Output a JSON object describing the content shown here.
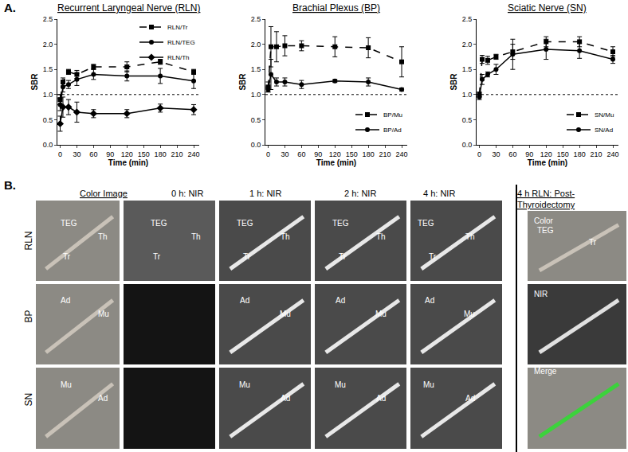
{
  "chart_data": [
    {
      "type": "line",
      "title": "Recurrent Laryngeal Nerve (RLN)",
      "x_label": "Time (min)",
      "y_label": "SBR",
      "x": [
        0,
        5,
        15,
        30,
        60,
        120,
        180,
        240
      ],
      "xlim": [
        -5,
        250
      ],
      "xticks": [
        0,
        30,
        60,
        90,
        120,
        150,
        180,
        210,
        240
      ],
      "ylim": [
        0,
        2.5
      ],
      "yticks": [
        {
          "value": 0,
          "label": "0.0"
        },
        0.5,
        {
          "value": 1,
          "label": "1.0"
        },
        1.5,
        {
          "value": 2,
          "label": "2.0"
        },
        2.5
      ],
      "reference_y": 1,
      "grid": false,
      "legend": "upper right",
      "series": [
        {
          "name": "RLN/Tr",
          "color": "#000000",
          "marker": "square",
          "line_style": "dashed",
          "values": [
            0.9,
            1.25,
            1.45,
            1.4,
            1.55,
            1.55,
            1.65,
            1.45
          ],
          "errors": [
            0.1,
            0.08,
            0.05,
            0.08,
            0.05,
            0.1,
            0.05,
            0.05
          ]
        },
        {
          "name": "RLN/TEG",
          "color": "#000000",
          "marker": "circle",
          "line_style": "solid",
          "values": [
            0.8,
            1.15,
            1.2,
            1.3,
            1.4,
            1.37,
            1.37,
            1.27
          ],
          "errors": [
            0.12,
            0.1,
            0.08,
            0.12,
            0.1,
            0.1,
            0.15,
            0.15
          ]
        },
        {
          "name": "RLN/Th",
          "color": "#000000",
          "marker": "diamond",
          "line_style": "solid",
          "values": [
            0.42,
            0.75,
            0.75,
            0.65,
            0.62,
            0.62,
            0.73,
            0.7
          ],
          "errors": [
            0.15,
            0.2,
            0.15,
            0.2,
            0.08,
            0.08,
            0.08,
            0.1
          ]
        }
      ]
    },
    {
      "type": "line",
      "title": "Brachial Plexus (BP)",
      "x_label": "Time (min)",
      "y_label": "SBR",
      "x": [
        0,
        5,
        15,
        30,
        60,
        120,
        180,
        240
      ],
      "xlim": [
        -5,
        250
      ],
      "xticks": [
        0,
        30,
        60,
        90,
        120,
        150,
        180,
        210,
        240
      ],
      "ylim": [
        0,
        2.5
      ],
      "yticks": [
        {
          "value": 0,
          "label": "0.0"
        },
        0.5,
        {
          "value": 1,
          "label": "1.0"
        },
        1.5,
        {
          "value": 2,
          "label": "2.0"
        },
        2.5
      ],
      "reference_y": 1,
      "grid": false,
      "legend": "lower right",
      "series": [
        {
          "name": "BP/Mu",
          "color": "#000000",
          "marker": "square",
          "line_style": "dashed",
          "values": [
            1.15,
            1.95,
            1.95,
            1.97,
            1.97,
            1.95,
            1.93,
            1.65
          ],
          "errors": [
            0.1,
            0.4,
            0.3,
            0.2,
            0.1,
            0.2,
            0.2,
            0.3
          ]
        },
        {
          "name": "BP/Ad",
          "color": "#000000",
          "marker": "circle",
          "line_style": "solid",
          "values": [
            1.1,
            1.4,
            1.25,
            1.25,
            1.2,
            1.27,
            1.25,
            1.1
          ],
          "errors": [
            0.05,
            0.3,
            0.08,
            0.08,
            0.08,
            0.03,
            0.08,
            0.03
          ]
        }
      ]
    },
    {
      "type": "line",
      "title": "Sciatic Nerve (SN)",
      "x_label": "Time (min)",
      "y_label": "SBR",
      "x": [
        0,
        5,
        15,
        30,
        60,
        120,
        180,
        240
      ],
      "xlim": [
        -5,
        250
      ],
      "xticks": [
        0,
        30,
        60,
        90,
        120,
        150,
        180,
        210,
        240
      ],
      "ylim": [
        0,
        2.5
      ],
      "yticks": [
        {
          "value": 0,
          "label": "0.0"
        },
        0.5,
        {
          "value": 1,
          "label": "1.0"
        },
        1.5,
        {
          "value": 2,
          "label": "2.0"
        },
        2.5
      ],
      "reference_y": 1,
      "grid": false,
      "legend": "lower right",
      "series": [
        {
          "name": "SN/Mu",
          "color": "#000000",
          "marker": "square",
          "line_style": "dashed",
          "values": [
            1.0,
            1.7,
            1.68,
            1.75,
            1.85,
            2.05,
            2.05,
            1.85
          ],
          "errors": [
            0.05,
            0.08,
            0.08,
            0.05,
            0.15,
            0.1,
            0.1,
            0.1
          ]
        },
        {
          "name": "SN/Ad",
          "color": "#000000",
          "marker": "circle",
          "line_style": "solid",
          "values": [
            0.95,
            1.3,
            1.4,
            1.5,
            1.8,
            1.9,
            1.87,
            1.7
          ],
          "errors": [
            0.05,
            0.1,
            0.05,
            0.1,
            0.3,
            0.2,
            0.15,
            0.08
          ]
        }
      ]
    }
  ],
  "panel_a_label": "A.",
  "panel_b": {
    "label": "B.",
    "columns": [
      "Color Image",
      "0 h: NIR",
      "1 h: NIR",
      "2 h: NIR",
      "4 h: NIR"
    ],
    "rows": [
      {
        "name": "RLN",
        "cells": [
          [
            "TEG",
            "Th",
            "Tr"
          ],
          [
            "TEG",
            "Th",
            "Tr"
          ],
          [
            "TEG",
            "Th",
            "Tr"
          ],
          [
            "TEG",
            "Th",
            "Tr"
          ],
          [
            "TEG",
            "Th",
            "Tr"
          ]
        ]
      },
      {
        "name": "BP",
        "cells": [
          [
            "Ad",
            "Mu"
          ],
          [],
          [
            "Ad",
            "Mu"
          ],
          [
            "Ad",
            "Mu"
          ],
          [
            "Ad",
            "Mu"
          ]
        ]
      },
      {
        "name": "SN",
        "cells": [
          [
            "Mu",
            "Ad"
          ],
          [],
          [
            "Mu",
            "Ad"
          ],
          [
            "Mu",
            "Ad"
          ],
          [
            "Mu",
            "Ad"
          ]
        ]
      }
    ],
    "side": {
      "title_lines": [
        "4 h RLN: Post-",
        "Thyroidectomy"
      ],
      "panels": [
        {
          "label": "Color",
          "labels": [
            "TEG",
            "Tr"
          ]
        },
        {
          "label": "NIR",
          "labels": []
        },
        {
          "label": "Merge",
          "labels": []
        }
      ]
    }
  }
}
